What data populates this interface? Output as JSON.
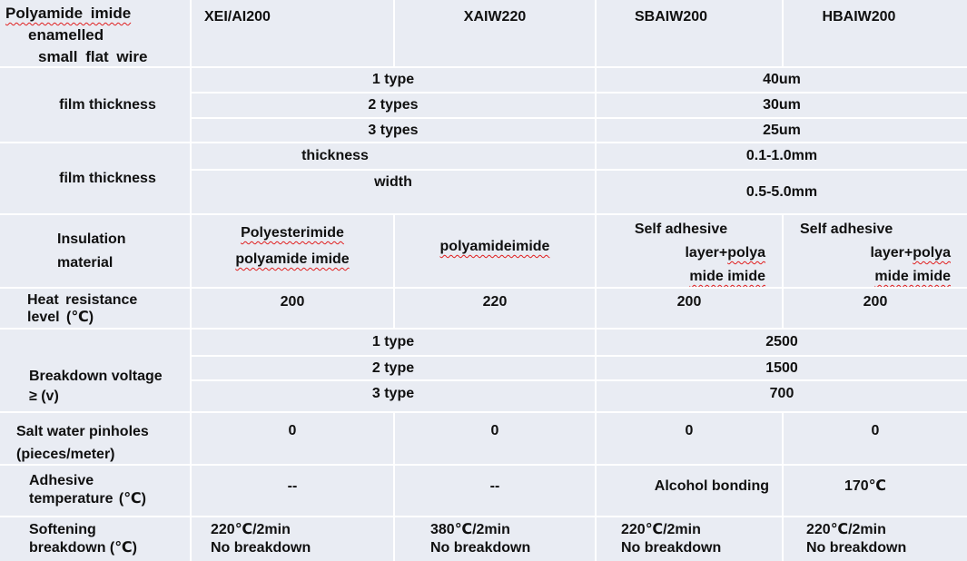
{
  "table": {
    "title_lines": [
      "Polyamide imide",
      "enamelled",
      "small flat wire"
    ],
    "columns": [
      "XEI/AI200",
      "XAIW220",
      "SBAIW200",
      "HBAIW200"
    ],
    "film_thickness": {
      "label": "film thickness",
      "types": [
        {
          "label": "1 type",
          "value": "40um"
        },
        {
          "label": "2 types",
          "value": "30um"
        },
        {
          "label": "3 types",
          "value": "25um"
        }
      ]
    },
    "dimensions": {
      "label": "film thickness",
      "rows": [
        {
          "label": "thickness",
          "value": "0.1-1.0mm"
        },
        {
          "label": "width",
          "value": "0.5-5.0mm"
        }
      ]
    },
    "insulation": {
      "label_lines": [
        "Insulation",
        "material"
      ],
      "xei_lines": [
        "Polyesterimide",
        "polyamide imide"
      ],
      "xaiw": "polyamideimide",
      "self_adhesive": {
        "line1": "Self adhesive",
        "line2_prefix": "layer+",
        "line2_misspelled": "polya",
        "line3": "mide imide"
      }
    },
    "heat_resistance": {
      "label_lines": [
        "Heat resistance",
        "level (℃)"
      ],
      "values": [
        "200",
        "220",
        "200",
        "200"
      ]
    },
    "breakdown_voltage": {
      "label_lines": [
        "Breakdown voltage",
        "≥ (v)"
      ],
      "types": [
        {
          "label": "1 type",
          "value": "2500"
        },
        {
          "label": "2 type",
          "value": "1500"
        },
        {
          "label": "3 type",
          "value": "700"
        }
      ]
    },
    "salt_water_pinholes": {
      "label_lines": [
        "Salt water pinholes",
        "(pieces/meter)"
      ],
      "values": [
        "0",
        "0",
        "0",
        "0"
      ]
    },
    "adhesive_temperature": {
      "label_lines": [
        "Adhesive",
        "temperature (℃)"
      ],
      "values": [
        "--",
        "--",
        "Alcohol bonding",
        "170℃"
      ]
    },
    "softening_breakdown": {
      "label_lines": [
        "Softening",
        "breakdown (℃)"
      ],
      "values": [
        {
          "line1": "220℃/2min",
          "line2": "No breakdown"
        },
        {
          "line1": "380℃/2min",
          "line2": "No breakdown"
        },
        {
          "line1": "220℃/2min",
          "line2": "No breakdown"
        },
        {
          "line1": "220℃/2min",
          "line2": "No breakdown"
        }
      ]
    }
  },
  "colors": {
    "cell_bg": "#e9ecf3",
    "grid_line": "#ffffff",
    "text": "#101010",
    "spellcheck_underline": "#e01e1e"
  }
}
